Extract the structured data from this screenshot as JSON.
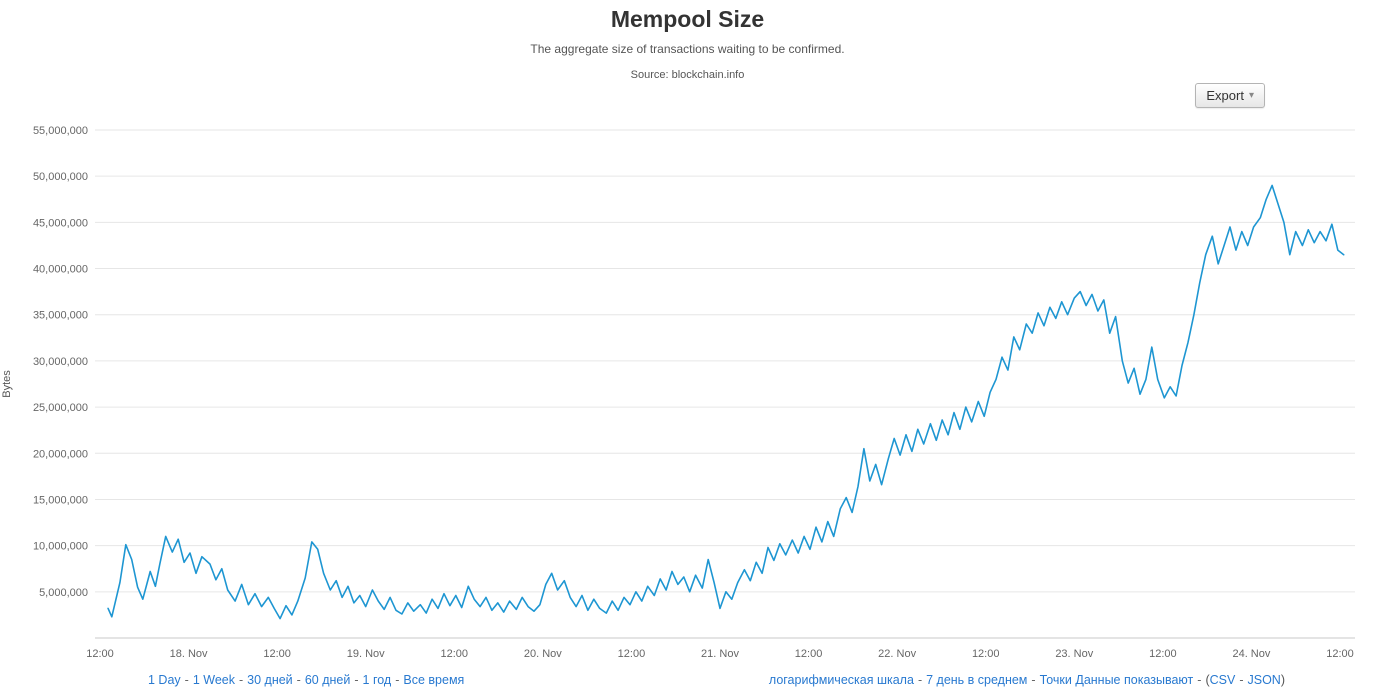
{
  "header": {
    "title": "Mempool Size",
    "subtitle": "The aggregate size of transactions waiting to be confirmed.",
    "source": "Source: blockchain.info"
  },
  "toolbar": {
    "export_label": "Export",
    "caret": "▾"
  },
  "chart_data": {
    "type": "line",
    "title": "Mempool Size",
    "subtitle": "The aggregate size of transactions waiting to be confirmed.",
    "source": "Source: blockchain.info",
    "ylabel": "Bytes",
    "series_name": "Mempool Size",
    "value_unit": "million bytes",
    "x_unit": "hours since 17 Nov 12:00",
    "xlim": [
      0,
      169
    ],
    "ylim": [
      0,
      55000000
    ],
    "grid": "horizontal-only",
    "legend": "none",
    "colors": {
      "line": "#1e96d2",
      "grid": "#e6e6e6",
      "axis": "#c8c8c8",
      "tick_text": "#666666"
    },
    "y_ticks": [
      {
        "value": 5000000,
        "label": "5,000,000"
      },
      {
        "value": 10000000,
        "label": "10,000,000"
      },
      {
        "value": 15000000,
        "label": "15,000,000"
      },
      {
        "value": 20000000,
        "label": "20,000,000"
      },
      {
        "value": 25000000,
        "label": "25,000,000"
      },
      {
        "value": 30000000,
        "label": "30,000,000"
      },
      {
        "value": 35000000,
        "label": "35,000,000"
      },
      {
        "value": 40000000,
        "label": "40,000,000"
      },
      {
        "value": 45000000,
        "label": "45,000,000"
      },
      {
        "value": 50000000,
        "label": "50,000,000"
      },
      {
        "value": 55000000,
        "label": "55,000,000"
      }
    ],
    "x_ticks": [
      {
        "hour": 0,
        "label": "12:00"
      },
      {
        "hour": 12,
        "label": "18. Nov"
      },
      {
        "hour": 24,
        "label": "12:00"
      },
      {
        "hour": 36,
        "label": "19. Nov"
      },
      {
        "hour": 48,
        "label": "12:00"
      },
      {
        "hour": 60,
        "label": "20. Nov"
      },
      {
        "hour": 72,
        "label": "12:00"
      },
      {
        "hour": 84,
        "label": "21. Nov"
      },
      {
        "hour": 96,
        "label": "12:00"
      },
      {
        "hour": 108,
        "label": "22. Nov"
      },
      {
        "hour": 120,
        "label": "12:00"
      },
      {
        "hour": 132,
        "label": "23. Nov"
      },
      {
        "hour": 144,
        "label": "12:00"
      },
      {
        "hour": 156,
        "label": "24. Nov"
      },
      {
        "hour": 168,
        "label": "12:00"
      }
    ],
    "series": [
      {
        "name": "Mempool Size",
        "points": [
          [
            1.1,
            3.2
          ],
          [
            1.6,
            2.3
          ],
          [
            2.7,
            6.0
          ],
          [
            3.5,
            10.1
          ],
          [
            4.3,
            8.5
          ],
          [
            5.1,
            5.5
          ],
          [
            5.8,
            4.2
          ],
          [
            6.8,
            7.2
          ],
          [
            7.5,
            5.6
          ],
          [
            8.1,
            8.0
          ],
          [
            8.9,
            11.0
          ],
          [
            9.8,
            9.3
          ],
          [
            10.6,
            10.7
          ],
          [
            11.4,
            8.2
          ],
          [
            12.2,
            9.2
          ],
          [
            13.0,
            7.0
          ],
          [
            13.8,
            8.8
          ],
          [
            14.9,
            8.0
          ],
          [
            15.7,
            6.3
          ],
          [
            16.5,
            7.5
          ],
          [
            17.3,
            5.2
          ],
          [
            18.3,
            4.0
          ],
          [
            19.2,
            5.8
          ],
          [
            20.1,
            3.6
          ],
          [
            21.0,
            4.8
          ],
          [
            21.9,
            3.4
          ],
          [
            22.8,
            4.4
          ],
          [
            23.6,
            3.2
          ],
          [
            24.4,
            2.1
          ],
          [
            25.2,
            3.5
          ],
          [
            26.0,
            2.5
          ],
          [
            26.8,
            4.0
          ],
          [
            27.8,
            6.5
          ],
          [
            28.7,
            10.4
          ],
          [
            29.5,
            9.6
          ],
          [
            30.3,
            7.0
          ],
          [
            31.2,
            5.2
          ],
          [
            32.0,
            6.2
          ],
          [
            32.8,
            4.4
          ],
          [
            33.6,
            5.6
          ],
          [
            34.4,
            3.8
          ],
          [
            35.2,
            4.6
          ],
          [
            36.0,
            3.4
          ],
          [
            36.9,
            5.2
          ],
          [
            37.7,
            4.0
          ],
          [
            38.5,
            3.1
          ],
          [
            39.3,
            4.4
          ],
          [
            40.1,
            3.0
          ],
          [
            40.9,
            2.6
          ],
          [
            41.7,
            3.8
          ],
          [
            42.5,
            2.9
          ],
          [
            43.4,
            3.6
          ],
          [
            44.2,
            2.7
          ],
          [
            45.0,
            4.2
          ],
          [
            45.8,
            3.2
          ],
          [
            46.6,
            4.8
          ],
          [
            47.4,
            3.5
          ],
          [
            48.2,
            4.6
          ],
          [
            49.0,
            3.3
          ],
          [
            49.9,
            5.6
          ],
          [
            50.7,
            4.2
          ],
          [
            51.5,
            3.4
          ],
          [
            52.3,
            4.4
          ],
          [
            53.1,
            3.0
          ],
          [
            53.9,
            3.8
          ],
          [
            54.7,
            2.8
          ],
          [
            55.5,
            4.0
          ],
          [
            56.4,
            3.1
          ],
          [
            57.2,
            4.4
          ],
          [
            58.0,
            3.4
          ],
          [
            58.8,
            2.9
          ],
          [
            59.6,
            3.6
          ],
          [
            60.4,
            5.8
          ],
          [
            61.2,
            7.0
          ],
          [
            62.0,
            5.2
          ],
          [
            62.9,
            6.2
          ],
          [
            63.7,
            4.4
          ],
          [
            64.5,
            3.4
          ],
          [
            65.3,
            4.6
          ],
          [
            66.1,
            3.0
          ],
          [
            66.9,
            4.2
          ],
          [
            67.7,
            3.2
          ],
          [
            68.6,
            2.7
          ],
          [
            69.4,
            4.0
          ],
          [
            70.2,
            3.0
          ],
          [
            71.0,
            4.4
          ],
          [
            71.8,
            3.6
          ],
          [
            72.6,
            5.0
          ],
          [
            73.4,
            4.0
          ],
          [
            74.2,
            5.6
          ],
          [
            75.1,
            4.6
          ],
          [
            75.9,
            6.4
          ],
          [
            76.7,
            5.2
          ],
          [
            77.5,
            7.2
          ],
          [
            78.3,
            5.8
          ],
          [
            79.1,
            6.6
          ],
          [
            79.9,
            5.0
          ],
          [
            80.7,
            6.8
          ],
          [
            81.6,
            5.4
          ],
          [
            82.4,
            8.5
          ],
          [
            83.2,
            6.0
          ],
          [
            84.0,
            3.2
          ],
          [
            84.8,
            5.0
          ],
          [
            85.6,
            4.2
          ],
          [
            86.4,
            6.0
          ],
          [
            87.3,
            7.4
          ],
          [
            88.1,
            6.2
          ],
          [
            88.9,
            8.2
          ],
          [
            89.7,
            7.0
          ],
          [
            90.5,
            9.8
          ],
          [
            91.3,
            8.4
          ],
          [
            92.1,
            10.2
          ],
          [
            92.9,
            9.0
          ],
          [
            93.8,
            10.6
          ],
          [
            94.6,
            9.2
          ],
          [
            95.4,
            11.0
          ],
          [
            96.2,
            9.6
          ],
          [
            97.0,
            12.0
          ],
          [
            97.8,
            10.4
          ],
          [
            98.6,
            12.6
          ],
          [
            99.4,
            11.0
          ],
          [
            100.3,
            14.0
          ],
          [
            101.1,
            15.2
          ],
          [
            101.9,
            13.6
          ],
          [
            102.7,
            16.4
          ],
          [
            103.5,
            20.5
          ],
          [
            104.3,
            17.0
          ],
          [
            105.1,
            18.8
          ],
          [
            105.9,
            16.6
          ],
          [
            106.8,
            19.4
          ],
          [
            107.6,
            21.6
          ],
          [
            108.4,
            19.8
          ],
          [
            109.2,
            22.0
          ],
          [
            110.0,
            20.2
          ],
          [
            110.8,
            22.6
          ],
          [
            111.6,
            21.0
          ],
          [
            112.5,
            23.2
          ],
          [
            113.3,
            21.4
          ],
          [
            114.1,
            23.6
          ],
          [
            114.9,
            22.0
          ],
          [
            115.7,
            24.4
          ],
          [
            116.5,
            22.6
          ],
          [
            117.3,
            25.0
          ],
          [
            118.1,
            23.4
          ],
          [
            119.0,
            25.6
          ],
          [
            119.8,
            24.0
          ],
          [
            120.6,
            26.6
          ],
          [
            121.4,
            28.0
          ],
          [
            122.2,
            30.4
          ],
          [
            123.0,
            29.0
          ],
          [
            123.8,
            32.6
          ],
          [
            124.6,
            31.2
          ],
          [
            125.5,
            34.0
          ],
          [
            126.3,
            33.0
          ],
          [
            127.1,
            35.2
          ],
          [
            127.9,
            33.8
          ],
          [
            128.7,
            35.8
          ],
          [
            129.5,
            34.6
          ],
          [
            130.3,
            36.4
          ],
          [
            131.1,
            35.0
          ],
          [
            132.0,
            36.8
          ],
          [
            132.8,
            37.5
          ],
          [
            133.6,
            36.0
          ],
          [
            134.4,
            37.2
          ],
          [
            135.2,
            35.4
          ],
          [
            136.0,
            36.6
          ],
          [
            136.8,
            33.0
          ],
          [
            137.6,
            34.8
          ],
          [
            138.5,
            30.0
          ],
          [
            139.3,
            27.6
          ],
          [
            140.1,
            29.2
          ],
          [
            140.9,
            26.4
          ],
          [
            141.7,
            28.0
          ],
          [
            142.5,
            31.5
          ],
          [
            143.3,
            28.0
          ],
          [
            144.2,
            26.0
          ],
          [
            145.0,
            27.2
          ],
          [
            145.8,
            26.2
          ],
          [
            146.6,
            29.5
          ],
          [
            147.4,
            32.0
          ],
          [
            148.2,
            35.0
          ],
          [
            149.0,
            38.5
          ],
          [
            149.8,
            41.5
          ],
          [
            150.7,
            43.5
          ],
          [
            151.5,
            40.5
          ],
          [
            152.3,
            42.5
          ],
          [
            153.1,
            44.5
          ],
          [
            153.9,
            42.0
          ],
          [
            154.7,
            44.0
          ],
          [
            155.5,
            42.5
          ],
          [
            156.3,
            44.5
          ],
          [
            157.2,
            45.5
          ],
          [
            158.0,
            47.5
          ],
          [
            158.8,
            49.0
          ],
          [
            159.6,
            47.0
          ],
          [
            160.4,
            45.0
          ],
          [
            161.2,
            41.5
          ],
          [
            162.0,
            44.0
          ],
          [
            162.9,
            42.5
          ],
          [
            163.7,
            44.2
          ],
          [
            164.5,
            42.8
          ],
          [
            165.3,
            44.0
          ],
          [
            166.1,
            43.0
          ],
          [
            166.9,
            44.8
          ],
          [
            167.7,
            42.0
          ],
          [
            168.5,
            41.5
          ]
        ]
      }
    ]
  },
  "footer": {
    "link_color": "#2879d0",
    "separator": "-",
    "left_links": [
      "1 Day",
      "1 Week",
      "30 дней",
      "60 дней",
      "1 год",
      "Все время"
    ],
    "right_links": [
      "логарифмическая шкала",
      "7 день в среднем",
      "Точки Данные показывают"
    ],
    "paren_open": "(",
    "paren_close": ")",
    "paren_links": [
      "CSV",
      "JSON"
    ]
  }
}
